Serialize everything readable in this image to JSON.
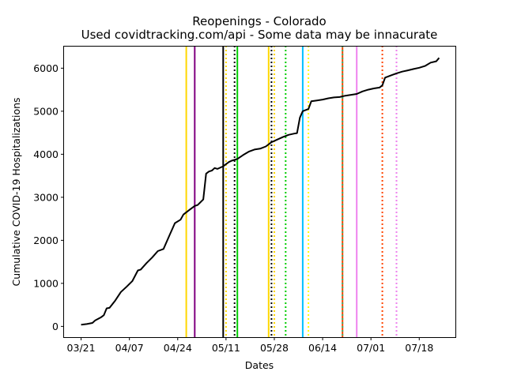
{
  "chart_data": {
    "type": "line",
    "title": "Reopenings - Colorado",
    "subtitle": "Used covidtracking.com/api - Some data may be innacurate",
    "xlabel": "Dates",
    "ylabel": "Cumulative COVID-19 Hospitalizations",
    "x_ticks": [
      "03/21",
      "04/07",
      "04/24",
      "05/11",
      "05/28",
      "06/14",
      "07/01",
      "07/18"
    ],
    "x_range": [
      "2020-03-15",
      "2020-07-31"
    ],
    "y_ticks": [
      0,
      1000,
      2000,
      3000,
      4000,
      5000,
      6000
    ],
    "ylim": [
      -250,
      6520
    ],
    "grid": false,
    "series": [
      {
        "color": "#000000",
        "points": [
          [
            "2020-03-21",
            40
          ],
          [
            "2020-03-23",
            55
          ],
          [
            "2020-03-25",
            80
          ],
          [
            "2020-03-26",
            140
          ],
          [
            "2020-03-28",
            210
          ],
          [
            "2020-03-29",
            260
          ],
          [
            "2020-03-30",
            420
          ],
          [
            "2020-03-31",
            430
          ],
          [
            "2020-04-02",
            600
          ],
          [
            "2020-04-04",
            800
          ],
          [
            "2020-04-06",
            920
          ],
          [
            "2020-04-08",
            1050
          ],
          [
            "2020-04-10",
            1300
          ],
          [
            "2020-04-11",
            1320
          ],
          [
            "2020-04-13",
            1470
          ],
          [
            "2020-04-15",
            1600
          ],
          [
            "2020-04-17",
            1750
          ],
          [
            "2020-04-19",
            1800
          ],
          [
            "2020-04-21",
            2100
          ],
          [
            "2020-04-23",
            2400
          ],
          [
            "2020-04-25",
            2480
          ],
          [
            "2020-04-26",
            2600
          ],
          [
            "2020-04-28",
            2700
          ],
          [
            "2020-04-30",
            2800
          ],
          [
            "2020-05-01",
            2820
          ],
          [
            "2020-05-03",
            2950
          ],
          [
            "2020-05-04",
            3550
          ],
          [
            "2020-05-05",
            3600
          ],
          [
            "2020-05-06",
            3620
          ],
          [
            "2020-05-07",
            3680
          ],
          [
            "2020-05-08",
            3660
          ],
          [
            "2020-05-10",
            3720
          ],
          [
            "2020-05-12",
            3820
          ],
          [
            "2020-05-13",
            3850
          ],
          [
            "2020-05-15",
            3890
          ],
          [
            "2020-05-17",
            3980
          ],
          [
            "2020-05-19",
            4060
          ],
          [
            "2020-05-21",
            4110
          ],
          [
            "2020-05-23",
            4130
          ],
          [
            "2020-05-25",
            4180
          ],
          [
            "2020-05-27",
            4280
          ],
          [
            "2020-05-29",
            4340
          ],
          [
            "2020-05-31",
            4400
          ],
          [
            "2020-06-02",
            4450
          ],
          [
            "2020-06-04",
            4480
          ],
          [
            "2020-06-05",
            4490
          ],
          [
            "2020-06-06",
            4850
          ],
          [
            "2020-06-07",
            5000
          ],
          [
            "2020-06-09",
            5050
          ],
          [
            "2020-06-10",
            5230
          ],
          [
            "2020-06-12",
            5250
          ],
          [
            "2020-06-14",
            5270
          ],
          [
            "2020-06-16",
            5300
          ],
          [
            "2020-06-18",
            5320
          ],
          [
            "2020-06-20",
            5330
          ],
          [
            "2020-06-22",
            5360
          ],
          [
            "2020-06-24",
            5380
          ],
          [
            "2020-06-26",
            5400
          ],
          [
            "2020-06-28",
            5460
          ],
          [
            "2020-06-30",
            5500
          ],
          [
            "2020-07-02",
            5530
          ],
          [
            "2020-07-04",
            5550
          ],
          [
            "2020-07-05",
            5600
          ],
          [
            "2020-07-06",
            5780
          ],
          [
            "2020-07-08",
            5830
          ],
          [
            "2020-07-10",
            5880
          ],
          [
            "2020-07-12",
            5920
          ],
          [
            "2020-07-14",
            5950
          ],
          [
            "2020-07-16",
            5980
          ],
          [
            "2020-07-18",
            6010
          ],
          [
            "2020-07-20",
            6050
          ],
          [
            "2020-07-22",
            6130
          ],
          [
            "2020-07-24",
            6160
          ],
          [
            "2020-07-25",
            6240
          ]
        ]
      }
    ],
    "vlines": [
      {
        "date": "2020-04-27",
        "color": "#ffd700",
        "style": "solid"
      },
      {
        "date": "2020-04-30",
        "color": "#800080",
        "style": "solid"
      },
      {
        "date": "2020-05-10",
        "color": "#000000",
        "style": "solid"
      },
      {
        "date": "2020-05-11",
        "color": "#ffd700",
        "style": "dotted"
      },
      {
        "date": "2020-05-14",
        "color": "#000000",
        "style": "dotted"
      },
      {
        "date": "2020-05-15",
        "color": "#00cc00",
        "style": "solid"
      },
      {
        "date": "2020-05-26",
        "color": "#ffd700",
        "style": "solid"
      },
      {
        "date": "2020-05-27",
        "color": "#000000",
        "style": "dotted"
      },
      {
        "date": "2020-05-28",
        "color": "#ffd700",
        "style": "dotted"
      },
      {
        "date": "2020-06-01",
        "color": "#00cc00",
        "style": "dotted"
      },
      {
        "date": "2020-06-07",
        "color": "#00bfff",
        "style": "solid"
      },
      {
        "date": "2020-06-09",
        "color": "#ffff00",
        "style": "dotted"
      },
      {
        "date": "2020-06-21",
        "color": "#ff4500",
        "style": "solid"
      },
      {
        "date": "2020-06-21",
        "color": "#3cb371",
        "style": "dotted"
      },
      {
        "date": "2020-06-26",
        "color": "#ee82ee",
        "style": "solid"
      },
      {
        "date": "2020-07-05",
        "color": "#ff4500",
        "style": "dotted"
      },
      {
        "date": "2020-07-10",
        "color": "#ee82ee",
        "style": "dotted"
      }
    ]
  }
}
